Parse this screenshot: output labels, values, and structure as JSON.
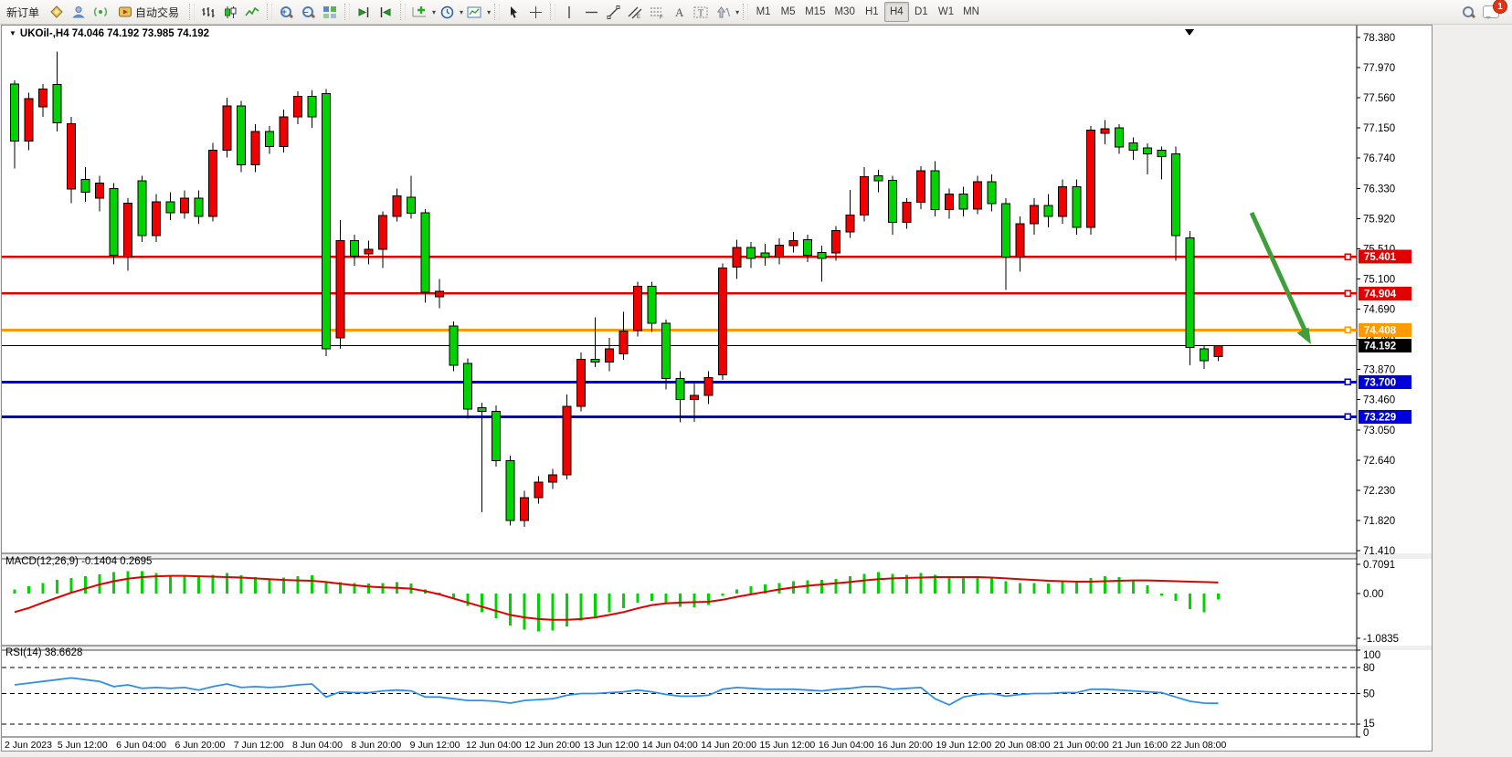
{
  "toolbar": {
    "new_order_label": "新订单",
    "auto_trading_label": "自动交易",
    "timeframes": [
      "M1",
      "M5",
      "M15",
      "M30",
      "H1",
      "H4",
      "D1",
      "W1",
      "MN"
    ],
    "active_timeframe": "H4",
    "notification_badge": "1"
  },
  "chart_data": {
    "type": "candlestick",
    "symbol_title": "UKOil-,H4  74.046 74.192 73.985 74.192",
    "timeframe": "H4",
    "up_color": "#f20000",
    "down_color": "#00d300",
    "candle_outline": "#000000",
    "y_ticks": [
      "78.380",
      "77.970",
      "77.560",
      "77.150",
      "76.740",
      "76.330",
      "75.920",
      "75.510",
      "75.100",
      "74.690",
      "74.280",
      "73.870",
      "73.460",
      "73.050",
      "72.640",
      "72.230",
      "71.820",
      "71.410"
    ],
    "y_range": [
      71.41,
      78.38
    ],
    "price_lines": [
      {
        "price": 75.401,
        "label": "75.401",
        "color": "#e00000",
        "width": 2.5
      },
      {
        "price": 74.904,
        "label": "74.904",
        "color": "#e00000",
        "width": 2.5
      },
      {
        "price": 74.408,
        "label": "74.408",
        "color": "#ff9900",
        "width": 3
      },
      {
        "price": 73.7,
        "label": "73.700",
        "color": "#0000d8",
        "width": 3
      },
      {
        "price": 73.229,
        "label": "73.229",
        "color": "#0000d8",
        "width": 3
      }
    ],
    "current_price": {
      "value": 74.192,
      "label": "74.192",
      "color": "#000000"
    },
    "annotation_arrow": {
      "color": "#3f9f3a",
      "from_price": 75.96,
      "to_price": 74.21
    },
    "x_labels": [
      "2 Jun 2023",
      "5 Jun 12:00",
      "6 Jun 04:00",
      "6 Jun 20:00",
      "7 Jun 12:00",
      "8 Jun 04:00",
      "8 Jun 20:00",
      "9 Jun 12:00",
      "12 Jun 04:00",
      "12 Jun 20:00",
      "13 Jun 12:00",
      "14 Jun 04:00",
      "14 Jun 20:00",
      "15 Jun 12:00",
      "16 Jun 04:00",
      "16 Jun 20:00",
      "19 Jun 12:00",
      "20 Jun 08:00",
      "21 Jun 00:00",
      "21 Jun 16:00",
      "22 Jun 08:00"
    ],
    "candles": [
      [
        77.75,
        77.8,
        76.6,
        76.97
      ],
      [
        76.97,
        77.63,
        76.85,
        77.55
      ],
      [
        77.44,
        77.75,
        77.3,
        77.68
      ],
      [
        77.74,
        78.19,
        77.1,
        77.22
      ],
      [
        76.32,
        77.3,
        76.13,
        77.21
      ],
      [
        76.45,
        76.62,
        76.15,
        76.28
      ],
      [
        76.2,
        76.5,
        76.02,
        76.4
      ],
      [
        76.33,
        76.4,
        75.3,
        75.42
      ],
      [
        75.4,
        76.2,
        75.21,
        76.13
      ],
      [
        76.43,
        76.5,
        75.6,
        75.69
      ],
      [
        75.69,
        76.25,
        75.6,
        76.15
      ],
      [
        76.15,
        76.28,
        75.9,
        76.0
      ],
      [
        76.0,
        76.3,
        75.92,
        76.2
      ],
      [
        76.2,
        76.3,
        75.85,
        75.95
      ],
      [
        75.95,
        76.95,
        75.88,
        76.85
      ],
      [
        76.85,
        77.56,
        76.75,
        77.45
      ],
      [
        77.45,
        77.52,
        76.55,
        76.65
      ],
      [
        76.65,
        77.2,
        76.55,
        77.1
      ],
      [
        77.1,
        77.18,
        76.8,
        76.9
      ],
      [
        76.9,
        77.4,
        76.82,
        77.3
      ],
      [
        77.3,
        77.65,
        77.2,
        77.58
      ],
      [
        77.58,
        77.66,
        77.15,
        77.3
      ],
      [
        77.62,
        77.68,
        74.05,
        74.15
      ],
      [
        74.3,
        75.9,
        74.15,
        75.62
      ],
      [
        75.62,
        75.7,
        75.28,
        75.41
      ],
      [
        75.44,
        75.62,
        75.3,
        75.5
      ],
      [
        75.5,
        76.02,
        75.25,
        75.96
      ],
      [
        75.95,
        76.33,
        75.88,
        76.23
      ],
      [
        76.21,
        76.5,
        75.92,
        75.99
      ],
      [
        76.0,
        76.05,
        74.78,
        74.92
      ],
      [
        74.86,
        75.1,
        74.7,
        74.93
      ],
      [
        74.46,
        74.52,
        73.85,
        73.93
      ],
      [
        73.95,
        74.02,
        73.2,
        73.33
      ],
      [
        73.35,
        73.42,
        71.93,
        73.3
      ],
      [
        73.3,
        73.38,
        72.55,
        72.63
      ],
      [
        72.63,
        72.7,
        71.75,
        71.82
      ],
      [
        71.82,
        72.22,
        71.73,
        72.13
      ],
      [
        72.13,
        72.42,
        72.05,
        72.34
      ],
      [
        72.34,
        72.52,
        72.25,
        72.44
      ],
      [
        72.44,
        73.53,
        72.38,
        73.37
      ],
      [
        73.37,
        74.1,
        73.3,
        74.01
      ],
      [
        74.01,
        74.58,
        73.9,
        73.97
      ],
      [
        73.97,
        74.3,
        73.85,
        74.15
      ],
      [
        74.08,
        74.65,
        74.0,
        74.39
      ],
      [
        74.4,
        75.06,
        74.32,
        75.0
      ],
      [
        75.0,
        75.06,
        74.38,
        74.5
      ],
      [
        74.5,
        74.55,
        73.6,
        73.75
      ],
      [
        73.75,
        73.85,
        73.15,
        73.46
      ],
      [
        73.46,
        73.7,
        73.16,
        73.52
      ],
      [
        73.52,
        73.85,
        73.4,
        73.76
      ],
      [
        73.8,
        75.31,
        73.73,
        75.25
      ],
      [
        75.26,
        75.63,
        75.1,
        75.53
      ],
      [
        75.53,
        75.6,
        75.25,
        75.38
      ],
      [
        75.45,
        75.58,
        75.28,
        75.4
      ],
      [
        75.4,
        75.65,
        75.3,
        75.56
      ],
      [
        75.55,
        75.74,
        75.46,
        75.62
      ],
      [
        75.63,
        75.7,
        75.33,
        75.42
      ],
      [
        75.46,
        75.55,
        75.06,
        75.38
      ],
      [
        75.45,
        75.82,
        75.35,
        75.76
      ],
      [
        75.74,
        76.31,
        75.66,
        75.97
      ],
      [
        75.97,
        76.62,
        75.88,
        76.49
      ],
      [
        76.5,
        76.58,
        76.28,
        76.43
      ],
      [
        76.44,
        76.5,
        75.7,
        75.87
      ],
      [
        75.87,
        76.2,
        75.78,
        76.14
      ],
      [
        76.14,
        76.63,
        76.05,
        76.57
      ],
      [
        76.57,
        76.7,
        75.95,
        76.04
      ],
      [
        76.04,
        76.33,
        75.92,
        76.25
      ],
      [
        76.25,
        76.35,
        75.95,
        76.05
      ],
      [
        76.05,
        76.5,
        75.98,
        76.42
      ],
      [
        76.42,
        76.52,
        76.02,
        76.12
      ],
      [
        76.12,
        76.2,
        74.95,
        75.4
      ],
      [
        75.4,
        75.95,
        75.2,
        75.85
      ],
      [
        75.85,
        76.2,
        75.7,
        76.1
      ],
      [
        76.1,
        76.25,
        75.8,
        75.95
      ],
      [
        75.95,
        76.45,
        75.85,
        76.35
      ],
      [
        76.35,
        76.45,
        75.7,
        75.8
      ],
      [
        75.8,
        77.18,
        75.7,
        77.12
      ],
      [
        77.08,
        77.26,
        76.93,
        77.14
      ],
      [
        77.15,
        77.2,
        76.8,
        76.89
      ],
      [
        76.95,
        77.02,
        76.72,
        76.85
      ],
      [
        76.88,
        76.94,
        76.52,
        76.8
      ],
      [
        76.85,
        76.9,
        76.45,
        76.76
      ],
      [
        76.8,
        76.9,
        75.35,
        75.69
      ],
      [
        75.66,
        75.75,
        73.93,
        74.17
      ],
      [
        74.15,
        74.2,
        73.88,
        73.99
      ],
      [
        74.046,
        74.192,
        73.985,
        74.192
      ]
    ],
    "indicators": [
      {
        "name": "MACD",
        "label": "MACD(12,26,9) -0.1404 0.2695",
        "main_value": -0.1404,
        "signal_value": 0.2695,
        "y_ticks": [
          "0.7091",
          "0.00",
          "-1.0835"
        ],
        "histogram_color": "#00d300",
        "signal_color": "#e00000",
        "histogram": [
          0.1,
          0.18,
          0.26,
          0.33,
          0.38,
          0.42,
          0.47,
          0.52,
          0.55,
          0.54,
          0.5,
          0.44,
          0.45,
          0.4,
          0.46,
          0.5,
          0.44,
          0.4,
          0.37,
          0.39,
          0.42,
          0.44,
          0.3,
          0.28,
          0.26,
          0.24,
          0.26,
          0.28,
          0.25,
          0.1,
          0.02,
          -0.12,
          -0.3,
          -0.45,
          -0.6,
          -0.78,
          -0.88,
          -0.92,
          -0.9,
          -0.8,
          -0.65,
          -0.55,
          -0.45,
          -0.35,
          -0.22,
          -0.18,
          -0.25,
          -0.32,
          -0.33,
          -0.28,
          -0.05,
          0.1,
          0.18,
          0.22,
          0.26,
          0.3,
          0.32,
          0.33,
          0.36,
          0.42,
          0.48,
          0.52,
          0.48,
          0.46,
          0.5,
          0.46,
          0.42,
          0.4,
          0.42,
          0.4,
          0.3,
          0.26,
          0.26,
          0.25,
          0.28,
          0.3,
          0.38,
          0.42,
          0.4,
          0.33,
          0.2,
          -0.05,
          -0.18,
          -0.38,
          -0.45,
          -0.14
        ],
        "signal": [
          -0.45,
          -0.35,
          -0.22,
          -0.1,
          0.02,
          0.12,
          0.22,
          0.3,
          0.36,
          0.4,
          0.42,
          0.43,
          0.43,
          0.42,
          0.41,
          0.4,
          0.39,
          0.37,
          0.35,
          0.33,
          0.32,
          0.31,
          0.28,
          0.24,
          0.2,
          0.17,
          0.15,
          0.14,
          0.12,
          0.06,
          -0.02,
          -0.12,
          -0.22,
          -0.32,
          -0.42,
          -0.52,
          -0.58,
          -0.62,
          -0.64,
          -0.64,
          -0.62,
          -0.58,
          -0.52,
          -0.45,
          -0.36,
          -0.28,
          -0.24,
          -0.22,
          -0.21,
          -0.2,
          -0.15,
          -0.08,
          -0.02,
          0.04,
          0.1,
          0.15,
          0.19,
          0.22,
          0.25,
          0.28,
          0.32,
          0.35,
          0.37,
          0.38,
          0.39,
          0.4,
          0.4,
          0.4,
          0.4,
          0.39,
          0.37,
          0.35,
          0.33,
          0.31,
          0.3,
          0.29,
          0.29,
          0.3,
          0.31,
          0.32,
          0.32,
          0.31,
          0.3,
          0.29,
          0.28,
          0.27
        ]
      },
      {
        "name": "RSI",
        "label": "RSI(14) 38.6628",
        "value": 38.6628,
        "y_ticks": [
          "100",
          "80",
          "50",
          "15",
          "0"
        ],
        "levels": [
          80,
          50,
          15
        ],
        "line_color": "#2f8fe8",
        "values": [
          60,
          62,
          64,
          66,
          68,
          66,
          64,
          58,
          60,
          56,
          57,
          56,
          57,
          54,
          58,
          61,
          57,
          58,
          57,
          58,
          60,
          61,
          46,
          52,
          51,
          51,
          53,
          54,
          53,
          46,
          46,
          44,
          42,
          42,
          41,
          39,
          42,
          43,
          44,
          48,
          50,
          50,
          51,
          52,
          54,
          52,
          49,
          47,
          47,
          48,
          55,
          57,
          56,
          55,
          55,
          55,
          54,
          53,
          55,
          56,
          58,
          58,
          55,
          56,
          57,
          44,
          37,
          46,
          49,
          50,
          47,
          49,
          50,
          50,
          51,
          51,
          55,
          55,
          54,
          53,
          52,
          51,
          46,
          41,
          39,
          38.7
        ]
      }
    ]
  }
}
